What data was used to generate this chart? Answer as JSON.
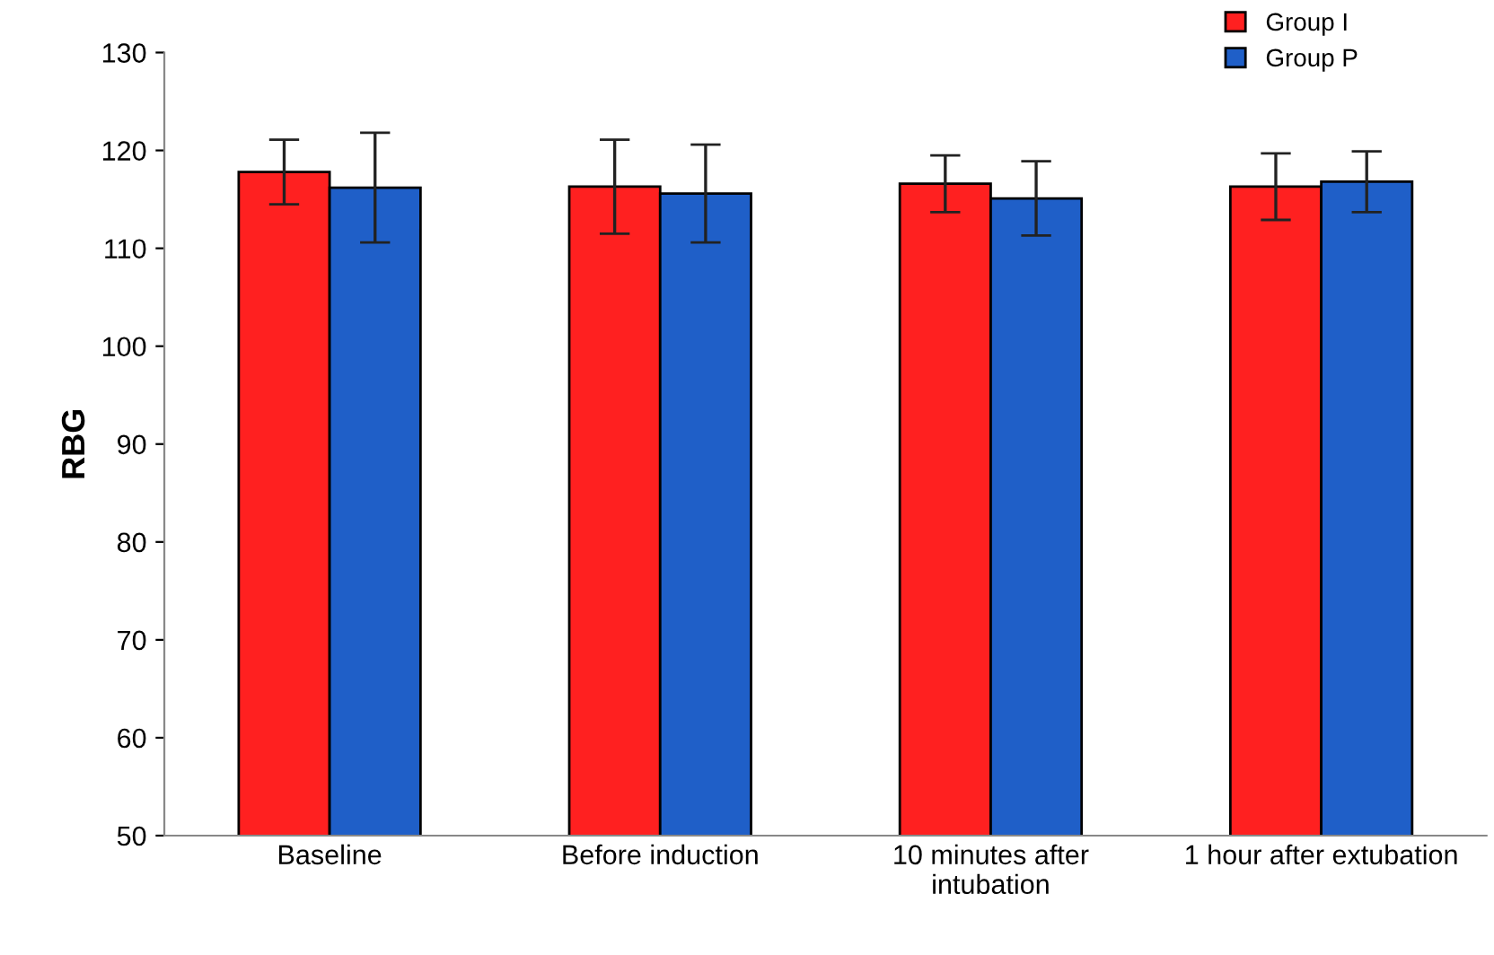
{
  "chart_data": {
    "type": "bar",
    "ylabel": "RBG",
    "categories": [
      "Baseline",
      "Before induction",
      "10 minutes after\nintubation",
      "1 hour after extubation"
    ],
    "series": [
      {
        "name": "Group I",
        "color": "#ff2020",
        "values": [
          117.8,
          116.3,
          116.6,
          116.3
        ],
        "errors": [
          3.3,
          4.8,
          2.9,
          3.4
        ]
      },
      {
        "name": "Group P",
        "color": "#1f5fc8",
        "values": [
          116.2,
          115.6,
          115.1,
          116.8
        ],
        "errors": [
          5.6,
          5.0,
          3.8,
          3.1
        ]
      }
    ],
    "ylim": [
      50,
      130
    ],
    "yticks": [
      50,
      60,
      70,
      80,
      90,
      100,
      110,
      120,
      130
    ],
    "grid": false,
    "legend": "top right"
  }
}
